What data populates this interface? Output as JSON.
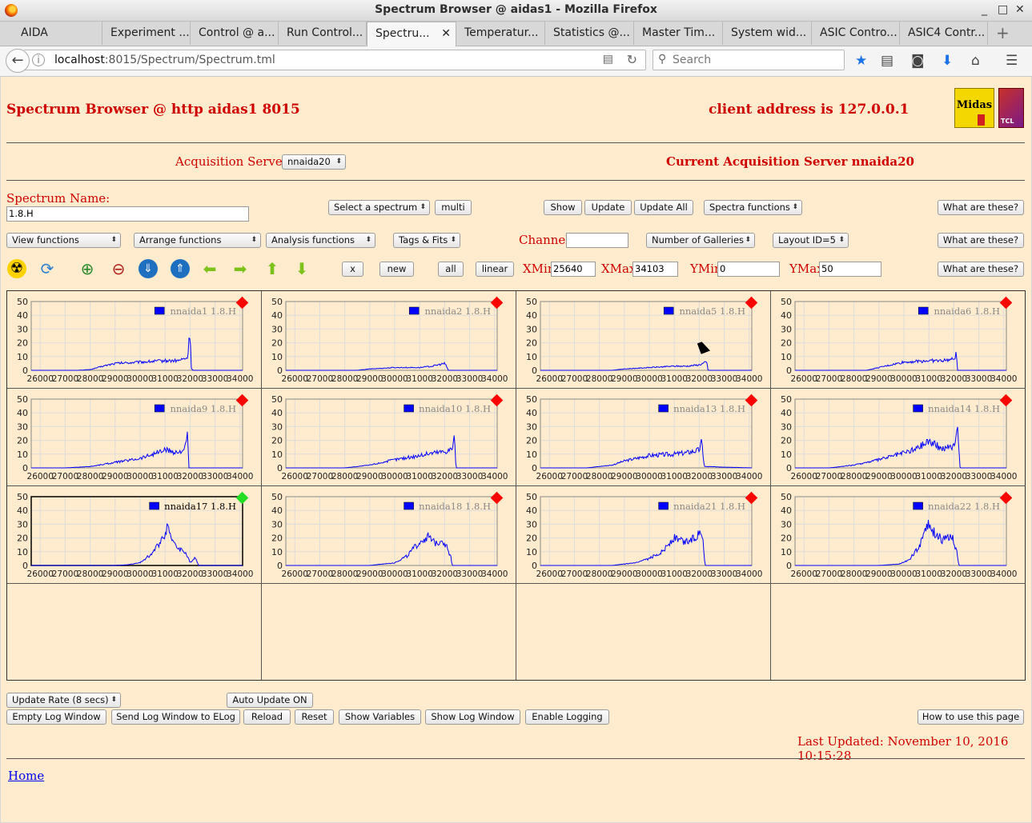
{
  "window": {
    "title": "Spectrum Browser @ aidas1 - Mozilla Firefox",
    "controls": [
      "_",
      "□",
      "✕"
    ]
  },
  "tabs": [
    {
      "label": "AIDA"
    },
    {
      "label": "Experiment ..."
    },
    {
      "label": "Control @ a..."
    },
    {
      "label": "Run Control..."
    },
    {
      "label": "Spectru...",
      "active": true
    },
    {
      "label": "Temperatur..."
    },
    {
      "label": "Statistics @..."
    },
    {
      "label": "Master Tim..."
    },
    {
      "label": "System wid..."
    },
    {
      "label": "ASIC Contro..."
    },
    {
      "label": "ASIC4 Contr..."
    }
  ],
  "navbar": {
    "url_host": "localhost",
    "url_rest": ":8015/Spectrum/Spectrum.tml",
    "search_placeholder": "Search"
  },
  "header": {
    "title": "Spectrum Browser @ http aidas1 8015",
    "client": "client address is 127.0.0.1",
    "logo_text": "Midas",
    "tcl_text": "TCL"
  },
  "acq": {
    "label": "Acquisition Servers",
    "server_select": "nnaida20",
    "current": "Current Acquisition Server nnaida20"
  },
  "row1": {
    "spectrum_label": "Spectrum Name:",
    "spectrum_value": "1.8.H",
    "select_spectrum": "Select a spectrum",
    "multi": "multi",
    "show": "Show",
    "update": "Update",
    "update_all": "Update All",
    "spectra_functions": "Spectra functions",
    "help": "What are these?"
  },
  "row2": {
    "view_functions": "View functions",
    "arrange_functions": "Arrange functions",
    "analysis_functions": "Analysis functions",
    "tags_fits": "Tags & Fits",
    "channel_label": "Channel:",
    "channel_value": "",
    "galleries": "Number of Galleries",
    "layout": "Layout ID=5",
    "help": "What are these?"
  },
  "row3": {
    "x": "x",
    "new": "new",
    "all": "all",
    "linear": "linear",
    "xmin_label": "XMin",
    "xmin": "25640",
    "xmax_label": "XMax",
    "xmax": "34103",
    "ymin_label": "YMin",
    "ymin": "0",
    "ymax_label": "YMax",
    "ymax": "50",
    "help": "What are these?"
  },
  "colors": {
    "status_red": "#ff0000",
    "status_green": "#22dd22",
    "series": "#0000ff",
    "page_bg": "#ffebcd",
    "accent_text": "#d00000"
  },
  "chart_data": [
    {
      "type": "line",
      "legend": "nnaida1",
      "spectrum": "1.8.H",
      "status": "red",
      "xlim": [
        25640,
        34103
      ],
      "ylim": [
        0,
        50
      ],
      "xticks": [
        26000,
        27000,
        28000,
        29000,
        30000,
        31000,
        32000,
        33000,
        34000
      ],
      "yticks": [
        0,
        10,
        20,
        30,
        40,
        50
      ],
      "x": [
        25640,
        27500,
        28000,
        28500,
        29000,
        30000,
        31000,
        31500,
        31900,
        32000,
        32050,
        32100,
        34103
      ],
      "y": [
        0,
        0,
        0.5,
        3,
        5,
        6,
        7,
        7,
        9,
        30,
        2,
        0,
        0
      ]
    },
    {
      "type": "line",
      "legend": "nnaida2",
      "spectrum": "1.8.H",
      "status": "red",
      "xlim": [
        25640,
        34103
      ],
      "ylim": [
        0,
        50
      ],
      "xticks": [
        26000,
        27000,
        28000,
        29000,
        30000,
        31000,
        32000,
        33000,
        34000
      ],
      "yticks": [
        0,
        10,
        20,
        30,
        40,
        50
      ],
      "x": [
        25640,
        28500,
        29000,
        30000,
        31000,
        31500,
        32000,
        32100,
        32150,
        34103
      ],
      "y": [
        0,
        0,
        1,
        2,
        2,
        3,
        5,
        2,
        0,
        0
      ]
    },
    {
      "type": "line",
      "legend": "nnaida5",
      "spectrum": "1.8.H",
      "status": "red",
      "xlim": [
        25640,
        34103
      ],
      "ylim": [
        0,
        50
      ],
      "xticks": [
        26000,
        27000,
        28000,
        29000,
        30000,
        31000,
        32000,
        33000,
        34000
      ],
      "yticks": [
        0,
        10,
        20,
        30,
        40,
        50
      ],
      "x": [
        25640,
        28500,
        29000,
        30000,
        31000,
        31500,
        32000,
        32300,
        32350,
        34103
      ],
      "y": [
        0,
        0,
        1,
        2,
        3,
        3,
        4,
        6,
        0,
        0
      ]
    },
    {
      "type": "line",
      "legend": "nnaida6",
      "spectrum": "1.8.H",
      "status": "red",
      "xlim": [
        25640,
        34103
      ],
      "ylim": [
        0,
        50
      ],
      "xticks": [
        26000,
        27000,
        28000,
        29000,
        30000,
        31000,
        32000,
        33000,
        34000
      ],
      "yticks": [
        0,
        10,
        20,
        30,
        40,
        50
      ],
      "x": [
        25640,
        28500,
        29000,
        29500,
        30000,
        31000,
        31500,
        32000,
        32100,
        32150,
        34103
      ],
      "y": [
        0,
        0,
        2,
        4,
        6,
        7,
        7,
        8,
        12,
        0,
        0
      ]
    },
    {
      "type": "line",
      "legend": "nnaida9",
      "spectrum": "1.8.H",
      "status": "red",
      "xlim": [
        25640,
        34103
      ],
      "ylim": [
        0,
        50
      ],
      "xticks": [
        26000,
        27000,
        28000,
        29000,
        30000,
        31000,
        32000,
        33000,
        34000
      ],
      "yticks": [
        0,
        10,
        20,
        30,
        40,
        50
      ],
      "x": [
        25640,
        27000,
        28000,
        29000,
        30000,
        30500,
        31000,
        31500,
        31800,
        31900,
        31950,
        34103
      ],
      "y": [
        0,
        0,
        1,
        4,
        7,
        10,
        13,
        11,
        14,
        24,
        0,
        0
      ]
    },
    {
      "type": "line",
      "legend": "nnaida10",
      "spectrum": "1.8.H",
      "status": "red",
      "xlim": [
        25640,
        34103
      ],
      "ylim": [
        0,
        50
      ],
      "xticks": [
        26000,
        27000,
        28000,
        29000,
        30000,
        31000,
        32000,
        33000,
        34000
      ],
      "yticks": [
        0,
        10,
        20,
        30,
        40,
        50
      ],
      "x": [
        25640,
        28000,
        29000,
        30000,
        31000,
        31500,
        32000,
        32300,
        32400,
        32450,
        34103
      ],
      "y": [
        0,
        0,
        2,
        6,
        9,
        11,
        12,
        14,
        24,
        0,
        0
      ]
    },
    {
      "type": "line",
      "legend": "nnaida13",
      "spectrum": "1.8.H",
      "status": "red",
      "xlim": [
        25640,
        34103
      ],
      "ylim": [
        0,
        50
      ],
      "xticks": [
        26000,
        27000,
        28000,
        29000,
        30000,
        31000,
        32000,
        33000,
        34000
      ],
      "yticks": [
        0,
        10,
        20,
        30,
        40,
        50
      ],
      "x": [
        25640,
        27500,
        28500,
        29000,
        30000,
        31000,
        31500,
        32000,
        32100,
        32200,
        34103
      ],
      "y": [
        0,
        0,
        2,
        5,
        9,
        10,
        11,
        13,
        19,
        1,
        0
      ]
    },
    {
      "type": "line",
      "legend": "nnaida14",
      "spectrum": "1.8.H",
      "status": "red",
      "xlim": [
        25640,
        34103
      ],
      "ylim": [
        0,
        50
      ],
      "xticks": [
        26000,
        27000,
        28000,
        29000,
        30000,
        31000,
        32000,
        33000,
        34000
      ],
      "yticks": [
        0,
        10,
        20,
        30,
        40,
        50
      ],
      "x": [
        25640,
        27000,
        28000,
        29000,
        30000,
        30500,
        31000,
        31500,
        32000,
        32150,
        32250,
        34103
      ],
      "y": [
        0,
        0,
        2,
        6,
        11,
        14,
        20,
        14,
        16,
        31,
        0,
        0
      ]
    },
    {
      "type": "line",
      "legend": "nnaida17",
      "spectrum": "1.8.H",
      "status": "green",
      "xlim": [
        25640,
        34103
      ],
      "ylim": [
        0,
        50
      ],
      "xticks": [
        26000,
        27000,
        28000,
        29000,
        30000,
        31000,
        32000,
        33000,
        34000
      ],
      "yticks": [
        0,
        10,
        20,
        30,
        40,
        50
      ],
      "x": [
        25640,
        29000,
        29500,
        30000,
        30500,
        30900,
        31100,
        31400,
        31800,
        32000,
        32200,
        32350,
        34103
      ],
      "y": [
        0,
        0,
        0.5,
        2,
        9,
        20,
        29,
        14,
        10,
        2,
        6,
        0,
        0
      ]
    },
    {
      "type": "line",
      "legend": "nnaida18",
      "spectrum": "1.8.H",
      "status": "red",
      "xlim": [
        25640,
        34103
      ],
      "ylim": [
        0,
        50
      ],
      "xticks": [
        26000,
        27000,
        28000,
        29000,
        30000,
        31000,
        32000,
        33000,
        34000
      ],
      "yticks": [
        0,
        10,
        20,
        30,
        40,
        50
      ],
      "x": [
        25640,
        29000,
        30000,
        30500,
        31000,
        31300,
        31600,
        31900,
        32100,
        32250,
        32300,
        34103
      ],
      "y": [
        0,
        0,
        2,
        7,
        17,
        21,
        16,
        19,
        13,
        6,
        0,
        0
      ]
    },
    {
      "type": "line",
      "legend": "nnaida21",
      "spectrum": "1.8.H",
      "status": "red",
      "xlim": [
        25640,
        34103
      ],
      "ylim": [
        0,
        50
      ],
      "xticks": [
        26000,
        27000,
        28000,
        29000,
        30000,
        31000,
        32000,
        33000,
        34000
      ],
      "yticks": [
        0,
        10,
        20,
        30,
        40,
        50
      ],
      "x": [
        25640,
        28500,
        29500,
        30000,
        30500,
        31000,
        31400,
        31800,
        32100,
        32200,
        32250,
        34103
      ],
      "y": [
        0,
        0,
        2,
        5,
        10,
        20,
        17,
        20,
        27,
        5,
        0,
        0
      ]
    },
    {
      "type": "line",
      "legend": "nnaida22",
      "spectrum": "1.8.H",
      "status": "red",
      "xlim": [
        25640,
        34103
      ],
      "ylim": [
        0,
        50
      ],
      "xticks": [
        26000,
        27000,
        28000,
        29000,
        30000,
        31000,
        32000,
        33000,
        34000
      ],
      "yticks": [
        0,
        10,
        20,
        30,
        40,
        50
      ],
      "x": [
        25640,
        29000,
        29800,
        30200,
        30600,
        30900,
        31300,
        31600,
        31900,
        32100,
        32200,
        34103
      ],
      "y": [
        0,
        0,
        1,
        4,
        13,
        30,
        22,
        18,
        22,
        12,
        0,
        0
      ]
    }
  ],
  "bottom": {
    "update_rate": "Update Rate (8 secs)",
    "auto_update": "Auto Update ON",
    "empty_log": "Empty Log Window",
    "send_log": "Send Log Window to ELog",
    "reload": "Reload",
    "reset": "Reset",
    "show_vars": "Show Variables",
    "show_log": "Show Log Window",
    "enable_logging": "Enable Logging",
    "how_to": "How to use this page",
    "last_updated": "Last Updated: November 10, 2016 10:15:28",
    "home": "Home"
  }
}
